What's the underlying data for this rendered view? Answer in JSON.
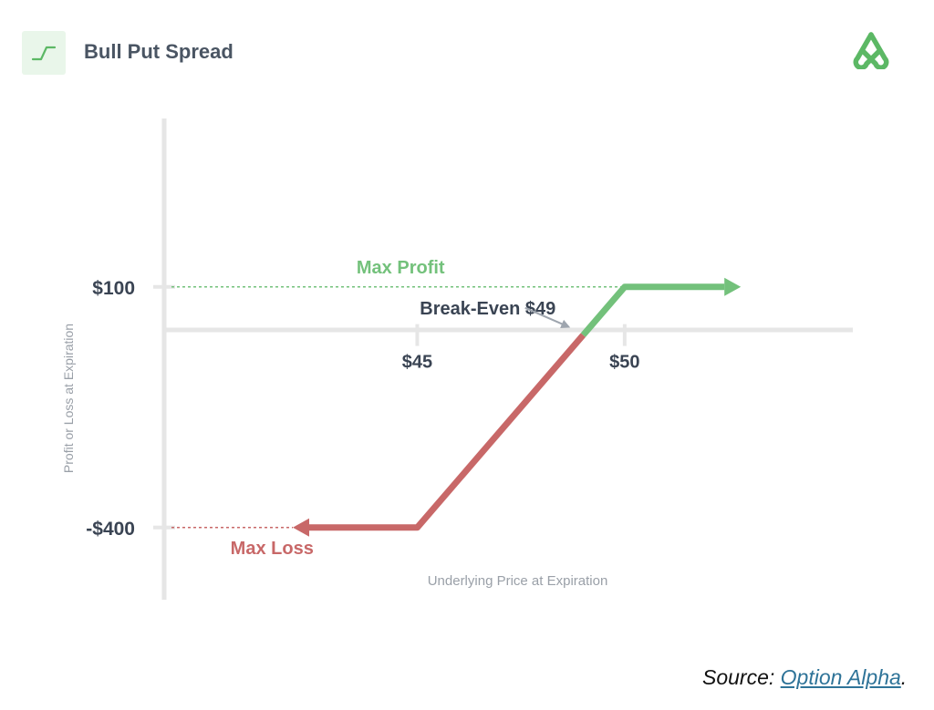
{
  "header": {
    "title": "Bull Put Spread",
    "icon": "payoff-step-icon",
    "logo": "option-alpha-logo-icon"
  },
  "colors": {
    "profit": "#73c17b",
    "loss": "#c86868",
    "axis": "#e6e6e6",
    "text_dark": "#3a4453",
    "text_muted": "#9aa0a8",
    "break_even_arrow": "#9ea5ae"
  },
  "chart_data": {
    "type": "line",
    "title": "Bull Put Spread",
    "xlabel": "Underlying Price at Expiration",
    "ylabel": "Profit or Loss at Expiration",
    "x_ticks": [
      {
        "value": 45,
        "label": "$45"
      },
      {
        "value": 50,
        "label": "$50"
      }
    ],
    "y_ticks": [
      {
        "value": 100,
        "label": "$100"
      },
      {
        "value": -400,
        "label": "-$400"
      }
    ],
    "xlim": [
      38.9,
      55.5
    ],
    "ylim": [
      -550,
      450
    ],
    "series": [
      {
        "values": [
          {
            "x": 42.0,
            "y": -400
          },
          {
            "x": 45,
            "y": -400
          },
          {
            "x": 49,
            "y": 0
          },
          {
            "x": 50,
            "y": 100
          },
          {
            "x": 52.8,
            "y": 100
          }
        ]
      }
    ],
    "annotations": {
      "max_profit": {
        "label": "Max Profit",
        "value": 100
      },
      "max_loss": {
        "label": "Max Loss",
        "value": -400
      },
      "break_even": {
        "label": "Break-Even $49",
        "value": 49
      }
    },
    "grid": false
  },
  "source": {
    "prefix": "Source: ",
    "link_text": "Option Alpha",
    "suffix": "."
  }
}
